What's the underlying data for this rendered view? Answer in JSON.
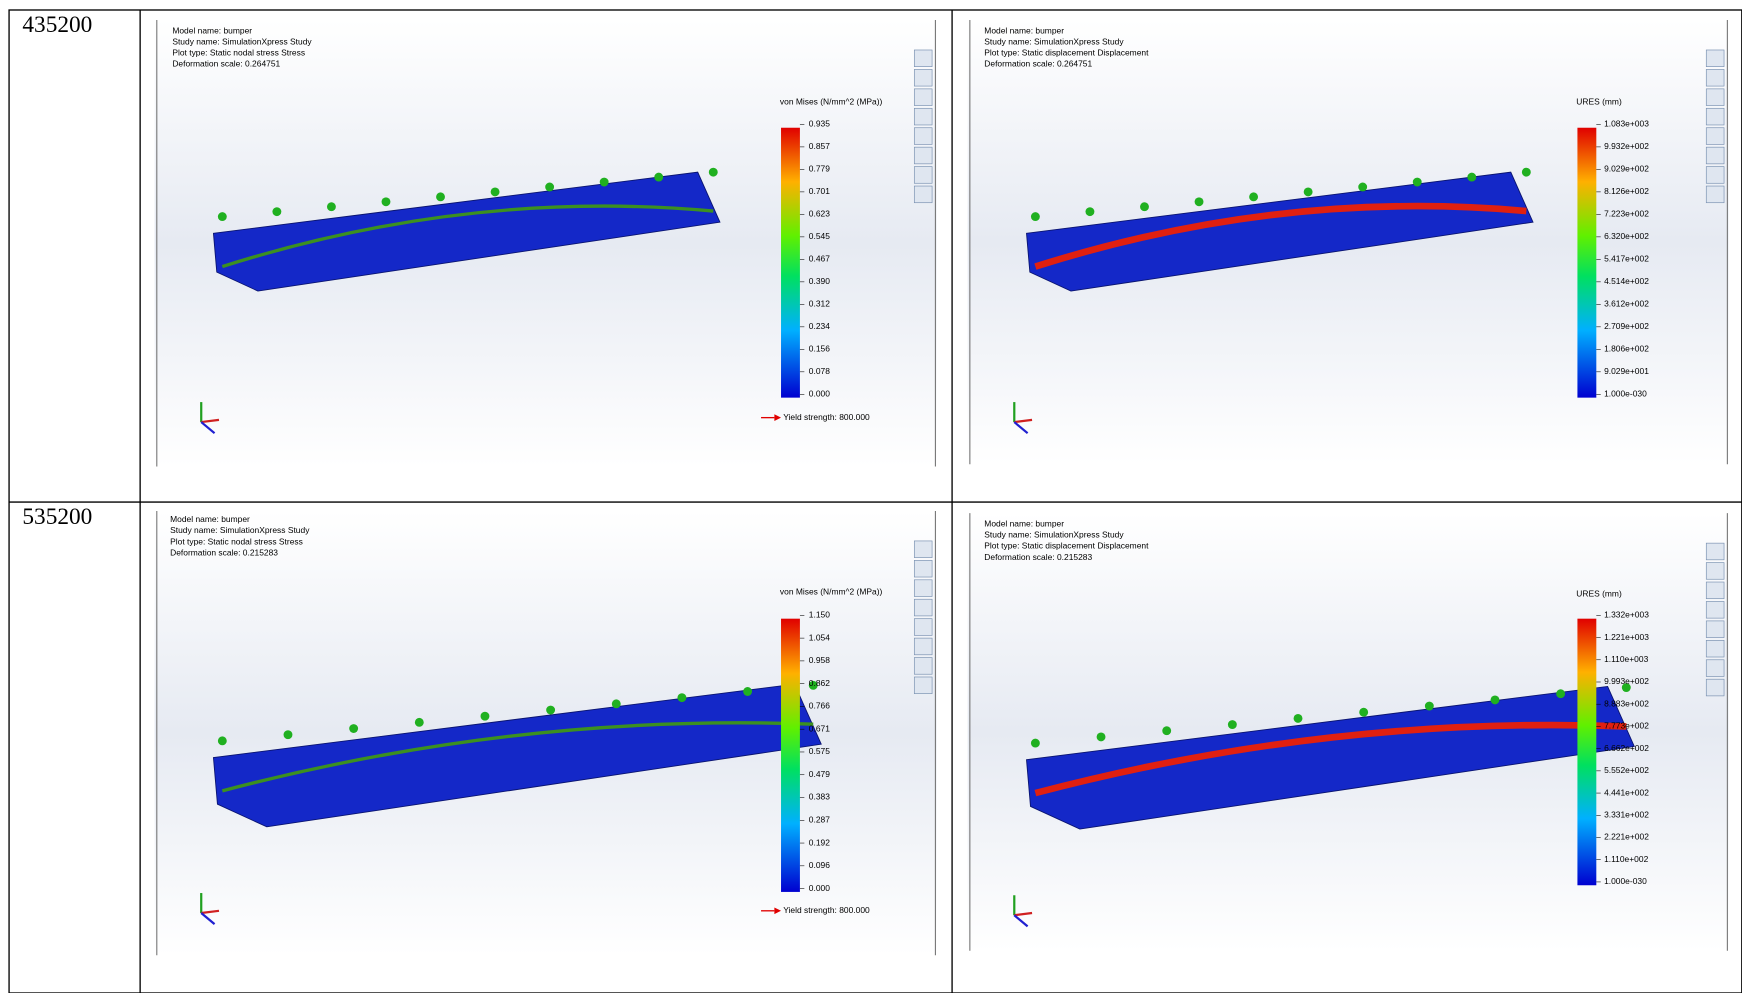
{
  "rows": [
    {
      "label": "435200",
      "panels": [
        {
          "info": [
            "Model name: bumper",
            "Study name: SimulationXpress Study",
            "Plot type: Static nodal stress Stress",
            "Deformation scale: 0.264751"
          ],
          "legend_title": "von Mises (N/mm^2 (MPa))",
          "legend_labels": [
            "0.935",
            "0.857",
            "0.779",
            "0.701",
            "0.623",
            "0.545",
            "0.467",
            "0.390",
            "0.312",
            "0.234",
            "0.156",
            "0.078",
            "0.000"
          ],
          "yield": "Yield strength: 800.000"
        },
        {
          "info": [
            "Model name: bumper",
            "Study name: SimulationXpress Study",
            "Plot type: Static displacement Displacement",
            "Deformation scale: 0.264751"
          ],
          "legend_title": "URES (mm)",
          "legend_labels": [
            "1.083e+003",
            "9.932e+002",
            "9.029e+002",
            "8.126e+002",
            "7.223e+002",
            "6.320e+002",
            "5.417e+002",
            "4.514e+002",
            "3.612e+002",
            "2.709e+002",
            "1.806e+002",
            "9.029e+001",
            "1.000e-030"
          ]
        }
      ]
    },
    {
      "label": "535200",
      "panels": [
        {
          "info": [
            "Model name: bumper",
            "Study name: SimulationXpress Study",
            "Plot type: Static nodal stress Stress",
            "Deformation scale: 0.215283"
          ],
          "legend_title": "von Mises (N/mm^2 (MPa))",
          "legend_labels": [
            "1.150",
            "1.054",
            "0.958",
            "0.862",
            "0.766",
            "0.671",
            "0.575",
            "0.479",
            "0.383",
            "0.287",
            "0.192",
            "0.096",
            "0.000"
          ],
          "yield": "Yield strength: 800.000"
        },
        {
          "info": [
            "Model name: bumper",
            "Study name: SimulationXpress Study",
            "Plot type: Static displacement Displacement",
            "Deformation scale: 0.215283"
          ],
          "legend_title": "URES (mm)",
          "legend_labels": [
            "1.332e+003",
            "1.221e+003",
            "1.110e+003",
            "9.993e+002",
            "8.883e+002",
            "7.773e+002",
            "6.662e+002",
            "5.552e+002",
            "4.441e+002",
            "3.331e+002",
            "2.221e+002",
            "1.110e+002",
            "1.000e-030"
          ]
        }
      ]
    }
  ]
}
